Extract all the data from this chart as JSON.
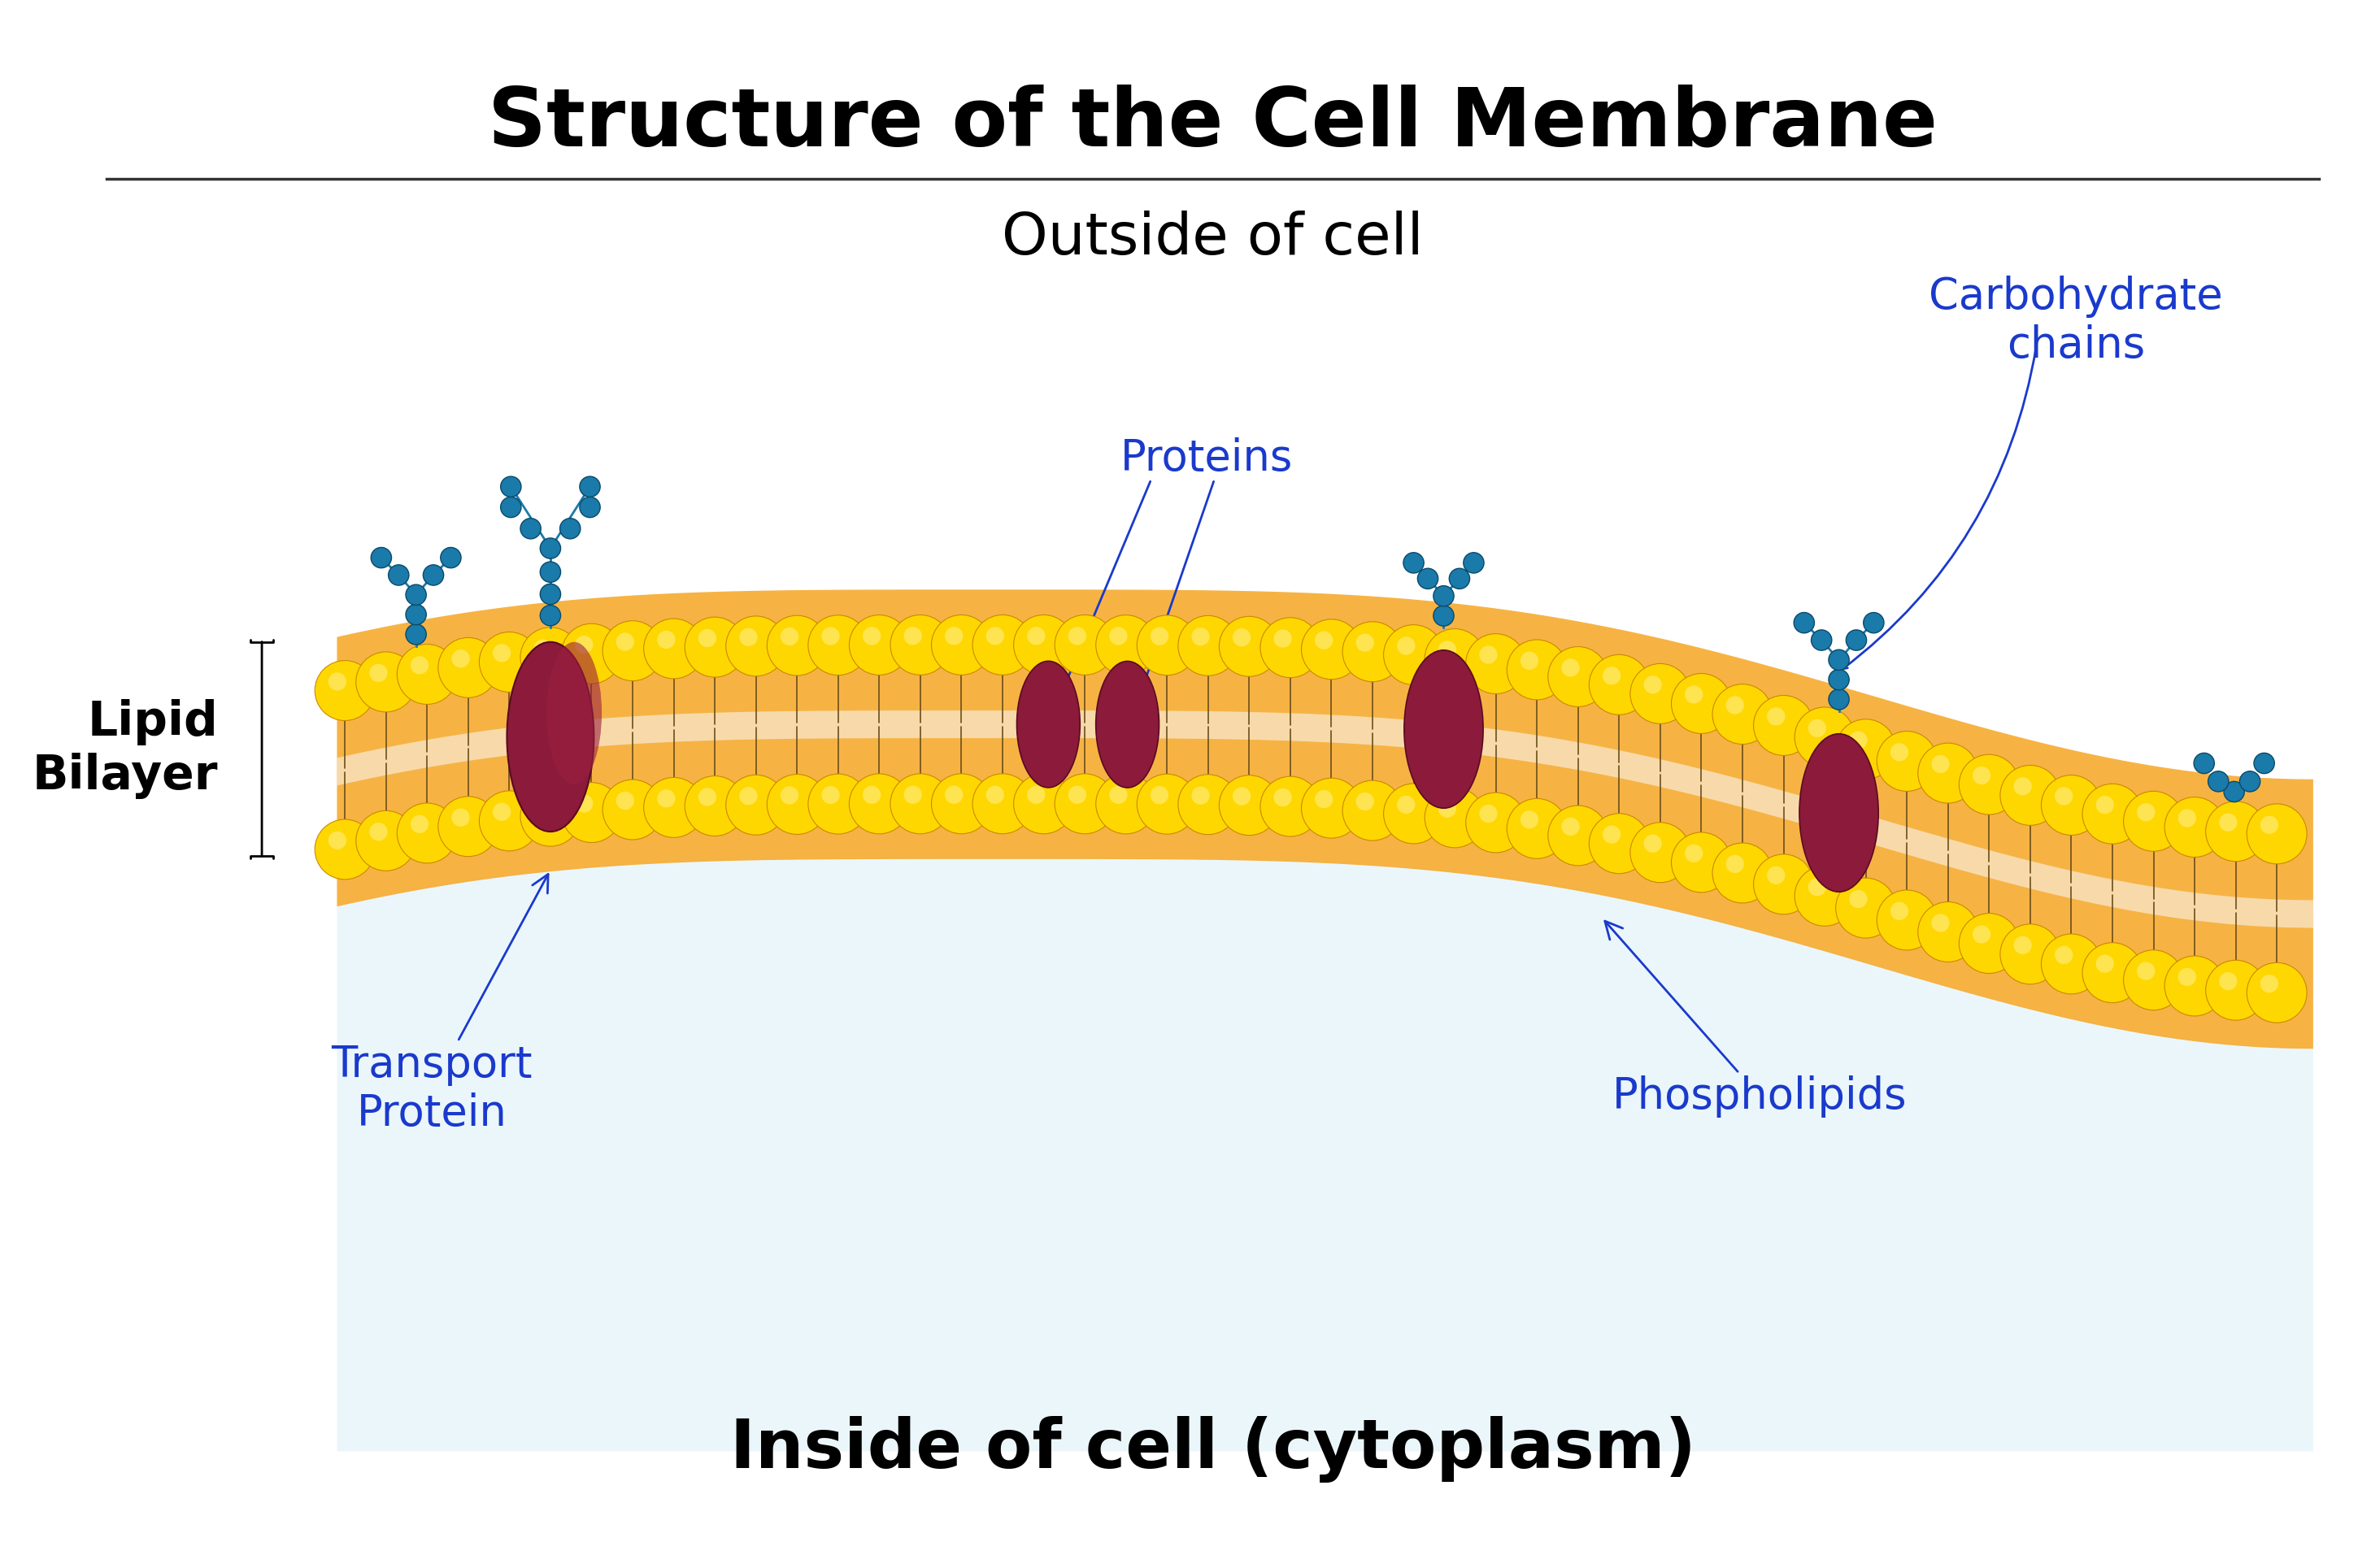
{
  "title": "Structure of the Cell Membrane",
  "title_fontsize": 72,
  "title_fontweight": "bold",
  "title_color": "#000000",
  "background_color": "#ffffff",
  "label_outside": "Outside of cell",
  "label_inside": "Inside of cell (cytoplasm)",
  "label_lipid": "Lipid\nBilayer",
  "label_proteins": "Proteins",
  "label_transport": "Transport\nProtein",
  "label_phospholipids": "Phospholipids",
  "label_carbohydrate": "Carbohydrate\nchains",
  "label_color_black": "#000000",
  "label_color_blue": "#1a3acc",
  "label_color_navy": "#000080",
  "phospholipid_head_color": "#FFD700",
  "phospholipid_head_color2": "#FFA500",
  "phospholipid_tail_color": "#8B6914",
  "membrane_fill_color": "#F4C842",
  "membrane_outer_color": "#E8A020",
  "protein_color": "#8B1A3B",
  "carbohydrate_color": "#1a7aaa",
  "membrane_bg_color": "#F5DEB3",
  "light_blue_bg": "#c8e8f0"
}
